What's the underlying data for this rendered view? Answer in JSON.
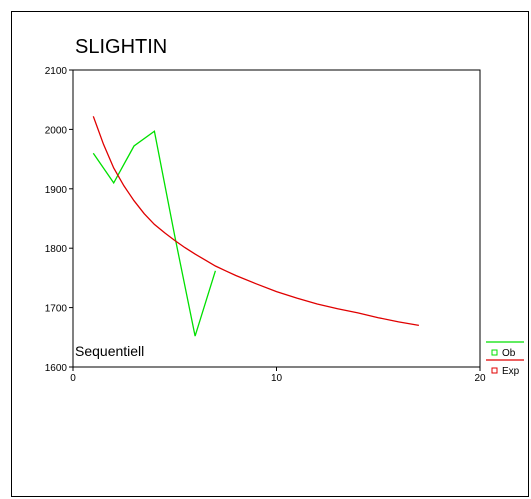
{
  "chart_data": {
    "type": "line",
    "title": "SLIGHTIN",
    "subtitle": "Sequentiell",
    "xlabel": "",
    "ylabel": "",
    "xlim": [
      0,
      20
    ],
    "ylim": [
      1600,
      2100
    ],
    "xticks": [
      0,
      10,
      20
    ],
    "yticks": [
      1600,
      1700,
      1800,
      1900,
      2000,
      2100
    ],
    "grid": false,
    "legend": "right",
    "series": [
      {
        "name": "Ob",
        "color": "#00e000",
        "x": [
          1,
          2,
          3,
          4,
          5,
          6,
          7
        ],
        "values": [
          1960,
          1910,
          1972,
          1997,
          1820,
          1652,
          1762
        ]
      },
      {
        "name": "Exp",
        "color": "#e00000",
        "x": [
          1,
          1.5,
          2,
          2.5,
          3,
          3.5,
          4,
          4.5,
          5,
          5.5,
          6,
          6.5,
          7,
          7.5,
          8,
          9,
          10,
          11,
          12,
          13,
          14,
          15,
          16,
          17
        ],
        "values": [
          2022,
          1975,
          1935,
          1905,
          1880,
          1858,
          1840,
          1826,
          1813,
          1801,
          1790,
          1780,
          1770,
          1762,
          1754,
          1740,
          1727,
          1716,
          1706,
          1698,
          1691,
          1683,
          1676,
          1670
        ]
      }
    ]
  }
}
